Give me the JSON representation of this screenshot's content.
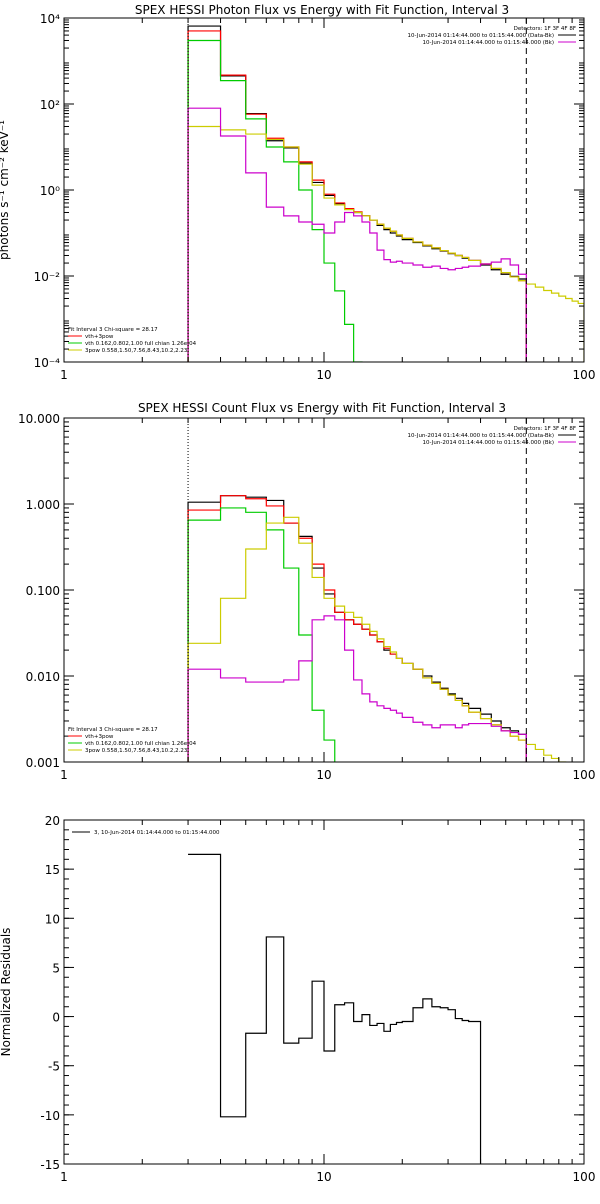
{
  "chart_data": [
    {
      "type": "line",
      "step": true,
      "title": "SPEX HESSI Photon Flux vs Energy with Fit Function, Interval 3",
      "ylabel": "photons s⁻¹ cm⁻² keV⁻¹",
      "xlabel": "",
      "xscale": "log",
      "yscale": "log",
      "xlim": [
        1,
        100
      ],
      "ylim": [
        0.0001,
        10000
      ],
      "x_ticks": [
        1,
        10,
        100
      ],
      "x_tick_labels": [
        "1",
        "10",
        "100"
      ],
      "y_ticks": [
        0.0001,
        0.01,
        1,
        100,
        10000
      ],
      "y_tick_labels": [
        "10⁻⁴",
        "10⁻²",
        "10⁰",
        "10²",
        "10⁴"
      ],
      "legend_top": {
        "header": "Detectors: 1F 3F 4F 8F",
        "entries": [
          {
            "label": "10-Jun-2014 01:14:44.000 to 01:15:44.000 (Data-Bk)",
            "color": "#000000"
          },
          {
            "label": "10-Jun-2014 01:14:44.000 to 01:15:44.000 (Bk)",
            "color": "#cc00cc"
          }
        ]
      },
      "legend_bottom": {
        "header": "Fit Interval 3   Chi-square = 28.17",
        "entries": [
          {
            "label": "vth+3pow",
            "color": "#ff0000"
          },
          {
            "label": "vth 0.162,0.802,1.00  full chian 1.26e-04",
            "color": "#00cc00"
          },
          {
            "label": "3pow 0.558,1.50,7.56,8.43,10.2,2.23",
            "color": "#cccc00"
          }
        ]
      },
      "vlines": [
        {
          "x": 3,
          "style": "dotted",
          "color": "#000000"
        },
        {
          "x": 60,
          "style": "dashed",
          "color": "#000000"
        }
      ],
      "edges": [
        3,
        4,
        5,
        6,
        7,
        8,
        9,
        10,
        11,
        12,
        13,
        14,
        15,
        16,
        17,
        18,
        19,
        20,
        22,
        24,
        26,
        28,
        30,
        32,
        34,
        36,
        40,
        44,
        48,
        52,
        56,
        60,
        65,
        70,
        75,
        80,
        85,
        90,
        95,
        100
      ],
      "series": [
        {
          "name": "Data-Bk",
          "color": "#000000",
          "values": [
            6500,
            450,
            60,
            14,
            9.5,
            4.2,
            1.5,
            0.75,
            0.48,
            0.36,
            0.3,
            0.25,
            0.2,
            0.15,
            0.12,
            0.1,
            0.085,
            0.07,
            0.06,
            0.05,
            0.043,
            0.038,
            0.033,
            0.03,
            0.026,
            0.023,
            0.018,
            0.014,
            0.011,
            0.0098,
            0.0085
          ]
        },
        {
          "name": "vth+3pow",
          "color": "#ff0000",
          "values": [
            5000,
            470,
            58,
            16,
            10,
            4.5,
            1.7,
            0.8,
            0.5,
            0.37,
            0.31,
            0.25,
            0.2,
            0.16,
            0.13,
            0.11,
            0.09,
            0.075,
            0.062,
            0.052,
            0.045,
            0.039,
            0.034,
            0.03,
            0.027,
            0.023,
            0.019,
            0.015,
            0.012,
            0.0095,
            0.0078
          ]
        },
        {
          "name": "vth",
          "color": "#00cc00",
          "values": [
            3000,
            350,
            45,
            10,
            4.5,
            1.0,
            0.12,
            0.02,
            0.0045,
            0.00075,
            0.0001,
            5e-05
          ]
        },
        {
          "name": "3pow",
          "color": "#cccc00",
          "values": [
            30,
            25,
            20,
            15,
            10,
            4,
            1.3,
            0.65,
            0.45,
            0.35,
            0.3,
            0.25,
            0.2,
            0.16,
            0.13,
            0.11,
            0.09,
            0.075,
            0.062,
            0.052,
            0.045,
            0.039,
            0.034,
            0.03,
            0.027,
            0.023,
            0.019,
            0.015,
            0.012,
            0.0095,
            0.0078,
            0.0065,
            0.0055,
            0.0046,
            0.004,
            0.0034,
            0.003,
            0.0026,
            0.0023
          ]
        },
        {
          "name": "Bk",
          "color": "#cc00cc",
          "values": [
            80,
            18,
            2.5,
            0.4,
            0.25,
            0.18,
            0.16,
            0.1,
            0.18,
            0.3,
            0.25,
            0.18,
            0.1,
            0.04,
            0.024,
            0.021,
            0.022,
            0.02,
            0.018,
            0.016,
            0.017,
            0.015,
            0.014,
            0.015,
            0.016,
            0.017,
            0.019,
            0.021,
            0.025,
            0.018,
            0.011
          ]
        }
      ]
    },
    {
      "type": "line",
      "step": true,
      "title": "SPEX HESSI Count Flux vs Energy with Fit Function, Interval 3",
      "ylabel": "",
      "xlabel": "",
      "xscale": "log",
      "yscale": "log",
      "xlim": [
        1,
        100
      ],
      "ylim": [
        0.001,
        10
      ],
      "x_ticks": [
        1,
        10,
        100
      ],
      "x_tick_labels": [
        "1",
        "10",
        "100"
      ],
      "y_ticks": [
        0.001,
        0.01,
        0.1,
        1,
        10
      ],
      "y_tick_labels": [
        "0.001",
        "0.010",
        "0.100",
        "1.000",
        "10.000"
      ],
      "legend_top": {
        "header": "Detectors: 1F 3F 4F 8F",
        "entries": [
          {
            "label": "10-Jun-2014 01:14:44.000 to 01:15:44.000 (Data-Bk)",
            "color": "#000000"
          },
          {
            "label": "10-Jun-2014 01:14:44.000 to 01:15:44.000 (Bk)",
            "color": "#cc00cc"
          }
        ]
      },
      "legend_bottom": {
        "header": "Fit Interval 3   Chi-square = 28.17",
        "entries": [
          {
            "label": "vth+3pow",
            "color": "#ff0000"
          },
          {
            "label": "vth 0.162,0.802,1.00  full chian 1.26e-04",
            "color": "#00cc00"
          },
          {
            "label": "3pow 0.558,1.50,7.56,8.43,10.2,2.23",
            "color": "#cccc00"
          }
        ]
      },
      "vlines": [
        {
          "x": 3,
          "style": "dotted",
          "color": "#000000"
        },
        {
          "x": 60,
          "style": "dashed",
          "color": "#000000"
        }
      ],
      "edges": [
        3,
        4,
        5,
        6,
        7,
        8,
        9,
        10,
        11,
        12,
        13,
        14,
        15,
        16,
        17,
        18,
        19,
        20,
        22,
        24,
        26,
        28,
        30,
        32,
        34,
        36,
        40,
        44,
        48,
        52,
        56,
        60,
        65,
        70,
        75,
        80,
        85,
        90,
        95,
        100
      ],
      "series": [
        {
          "name": "Data-Bk",
          "color": "#000000",
          "values": [
            1.05,
            1.25,
            1.2,
            1.1,
            0.6,
            0.42,
            0.18,
            0.09,
            0.055,
            0.045,
            0.04,
            0.035,
            0.03,
            0.025,
            0.02,
            0.018,
            0.016,
            0.014,
            0.012,
            0.01,
            0.0085,
            0.0072,
            0.0062,
            0.0055,
            0.0048,
            0.0042,
            0.0036,
            0.003,
            0.0025,
            0.0023,
            0.0021
          ]
        },
        {
          "name": "vth+3pow",
          "color": "#ff0000",
          "values": [
            0.85,
            1.25,
            1.15,
            0.95,
            0.6,
            0.4,
            0.2,
            0.1,
            0.055,
            0.045,
            0.04,
            0.035,
            0.03,
            0.025,
            0.021,
            0.018,
            0.016,
            0.014,
            0.012,
            0.0095,
            0.0082,
            0.007,
            0.006,
            0.0052,
            0.0045,
            0.0038,
            0.0032,
            0.0027,
            0.0023,
            0.002,
            0.0018
          ]
        },
        {
          "name": "vth",
          "color": "#00cc00",
          "values": [
            0.65,
            0.9,
            0.8,
            0.5,
            0.18,
            0.03,
            0.004,
            0.0018,
            0.0005
          ]
        },
        {
          "name": "3pow",
          "color": "#cccc00",
          "values": [
            0.024,
            0.08,
            0.3,
            0.6,
            0.7,
            0.35,
            0.14,
            0.08,
            0.065,
            0.055,
            0.048,
            0.04,
            0.033,
            0.027,
            0.022,
            0.019,
            0.016,
            0.014,
            0.012,
            0.0095,
            0.0082,
            0.007,
            0.006,
            0.0052,
            0.0045,
            0.0038,
            0.0032,
            0.0027,
            0.0023,
            0.002,
            0.0018,
            0.0016,
            0.0014,
            0.0012,
            0.0011,
            0.001
          ]
        },
        {
          "name": "Bk",
          "color": "#cc00cc",
          "values": [
            0.012,
            0.0095,
            0.0085,
            0.0085,
            0.009,
            0.015,
            0.045,
            0.05,
            0.045,
            0.02,
            0.009,
            0.0062,
            0.005,
            0.0045,
            0.0042,
            0.004,
            0.0037,
            0.0033,
            0.0029,
            0.0027,
            0.0025,
            0.0027,
            0.0027,
            0.0025,
            0.0027,
            0.0028,
            0.0028,
            0.0026,
            0.0023,
            0.0022,
            0.0021
          ]
        }
      ]
    },
    {
      "type": "line",
      "step": true,
      "title": "",
      "ylabel": "Normalized Residuals",
      "xlabel": "",
      "xscale": "log",
      "yscale": "linear",
      "xlim": [
        1,
        100
      ],
      "ylim": [
        -15,
        20
      ],
      "x_ticks": [
        1,
        10,
        100
      ],
      "x_tick_labels": [
        "1",
        "10",
        "100"
      ],
      "y_ticks": [
        -15,
        -10,
        -5,
        0,
        5,
        10,
        15,
        20
      ],
      "y_tick_labels": [
        "-15",
        "-10",
        "-5",
        "0",
        "5",
        "10",
        "15",
        "20"
      ],
      "legend_top": {
        "header": "",
        "entries": [
          {
            "label": "3, 10-Jun-2014 01:14:44.000 to 01:15:44.000",
            "color": "#000000"
          }
        ]
      },
      "edges": [
        3,
        4,
        5,
        6,
        7,
        8,
        9,
        10,
        11,
        12,
        13,
        14,
        15,
        16,
        17,
        18,
        19,
        20,
        22,
        24,
        26,
        28,
        30,
        32,
        34,
        36,
        40,
        44,
        48,
        52,
        56,
        60
      ],
      "series": [
        {
          "name": "3, 10-Jun-2014 01:14:44.000 to 01:15:44.000",
          "color": "#000000",
          "values": [
            16.5,
            -10.2,
            -1.7,
            8.1,
            -2.7,
            -2.2,
            3.6,
            -3.5,
            1.2,
            1.4,
            -0.5,
            0.2,
            -0.9,
            -0.7,
            -1.5,
            -0.8,
            -0.6,
            -0.5,
            0.9,
            1.8,
            1.0,
            0.9,
            0.7,
            -0.2,
            -0.4,
            -0.5
          ]
        }
      ]
    }
  ]
}
